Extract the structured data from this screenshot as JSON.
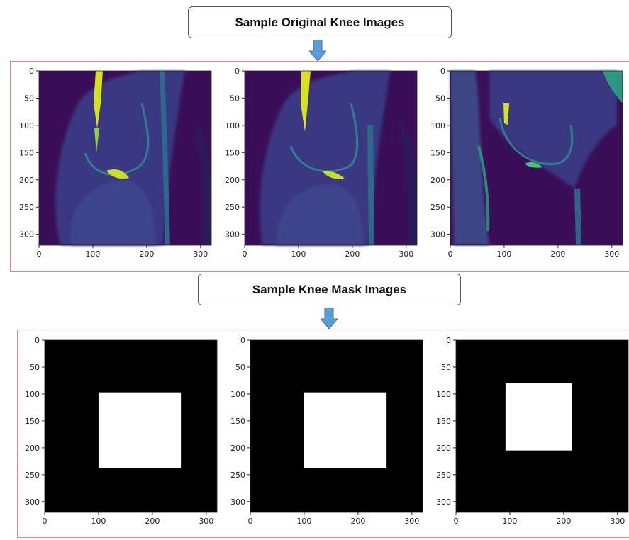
{
  "titles": {
    "original": "Sample Original Knee Images",
    "mask": "Sample Knee Mask Images"
  },
  "axes": {
    "yticks": [
      0,
      50,
      100,
      150,
      200,
      250,
      300
    ],
    "xticks": [
      0,
      100,
      200,
      300
    ],
    "range": [
      0,
      320
    ]
  },
  "colors": {
    "panel_border": "#f08080",
    "arrow": "#5b9bd5",
    "mri_background": "#3b0f57",
    "mri_highlight": "#d8e21b",
    "mask_background": "#000000",
    "mask_foreground": "#ffffff"
  },
  "images": {
    "original": [
      {
        "name": "knee-mri-1",
        "colormap": "viridis"
      },
      {
        "name": "knee-mri-2",
        "colormap": "viridis"
      },
      {
        "name": "knee-mri-3",
        "colormap": "viridis"
      }
    ],
    "mask": [
      {
        "name": "knee-mask-1",
        "colormap": "gray",
        "rect": {
          "x0": 100,
          "y0": 97,
          "x1": 253,
          "y1": 238
        }
      },
      {
        "name": "knee-mask-2",
        "colormap": "gray",
        "rect": {
          "x0": 100,
          "y0": 97,
          "x1": 253,
          "y1": 238
        }
      },
      {
        "name": "knee-mask-3",
        "colormap": "gray",
        "rect": {
          "x0": 92,
          "y0": 80,
          "x1": 215,
          "y1": 205
        }
      }
    ]
  }
}
